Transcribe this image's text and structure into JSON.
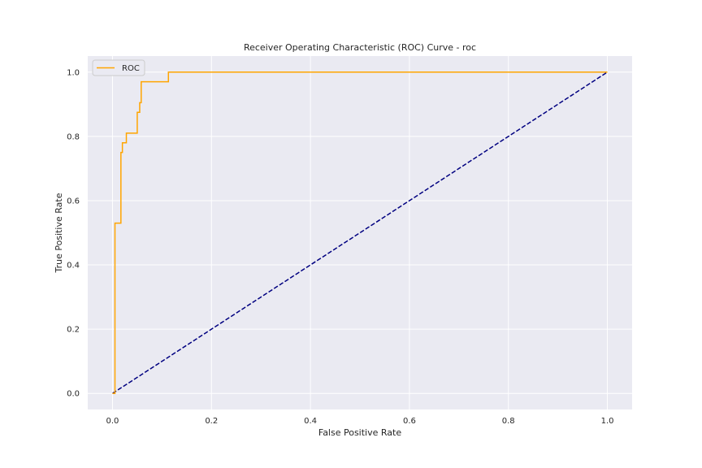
{
  "chart_data": {
    "type": "line",
    "title": "Receiver Operating Characteristic (ROC) Curve - roc",
    "xlabel": "False Positive Rate",
    "ylabel": "True Positive Rate",
    "xlim": [
      -0.05,
      1.05
    ],
    "ylim": [
      -0.05,
      1.05
    ],
    "xticks": [
      0.0,
      0.2,
      0.4,
      0.6,
      0.8,
      1.0
    ],
    "yticks": [
      0.0,
      0.2,
      0.4,
      0.6,
      0.8,
      1.0
    ],
    "xtick_labels": [
      "0.0",
      "0.2",
      "0.4",
      "0.6",
      "0.8",
      "1.0"
    ],
    "ytick_labels": [
      "0.0",
      "0.2",
      "0.4",
      "0.6",
      "0.8",
      "1.0"
    ],
    "grid": true,
    "legend_position": "upper-left",
    "series": [
      {
        "name": "ROC",
        "color": "#ffa500",
        "style": "solid",
        "x": [
          0.0,
          0.005,
          0.005,
          0.017,
          0.017,
          0.02,
          0.02,
          0.028,
          0.028,
          0.05,
          0.05,
          0.055,
          0.055,
          0.058,
          0.058,
          0.113,
          0.113,
          1.0
        ],
        "y": [
          0.0,
          0.0,
          0.53,
          0.53,
          0.75,
          0.75,
          0.78,
          0.78,
          0.81,
          0.81,
          0.875,
          0.875,
          0.905,
          0.905,
          0.97,
          0.97,
          1.0,
          1.0
        ]
      },
      {
        "color": "#000080",
        "style": "dashed",
        "x": [
          0.0,
          1.0
        ],
        "y": [
          0.0,
          1.0
        ]
      }
    ]
  }
}
